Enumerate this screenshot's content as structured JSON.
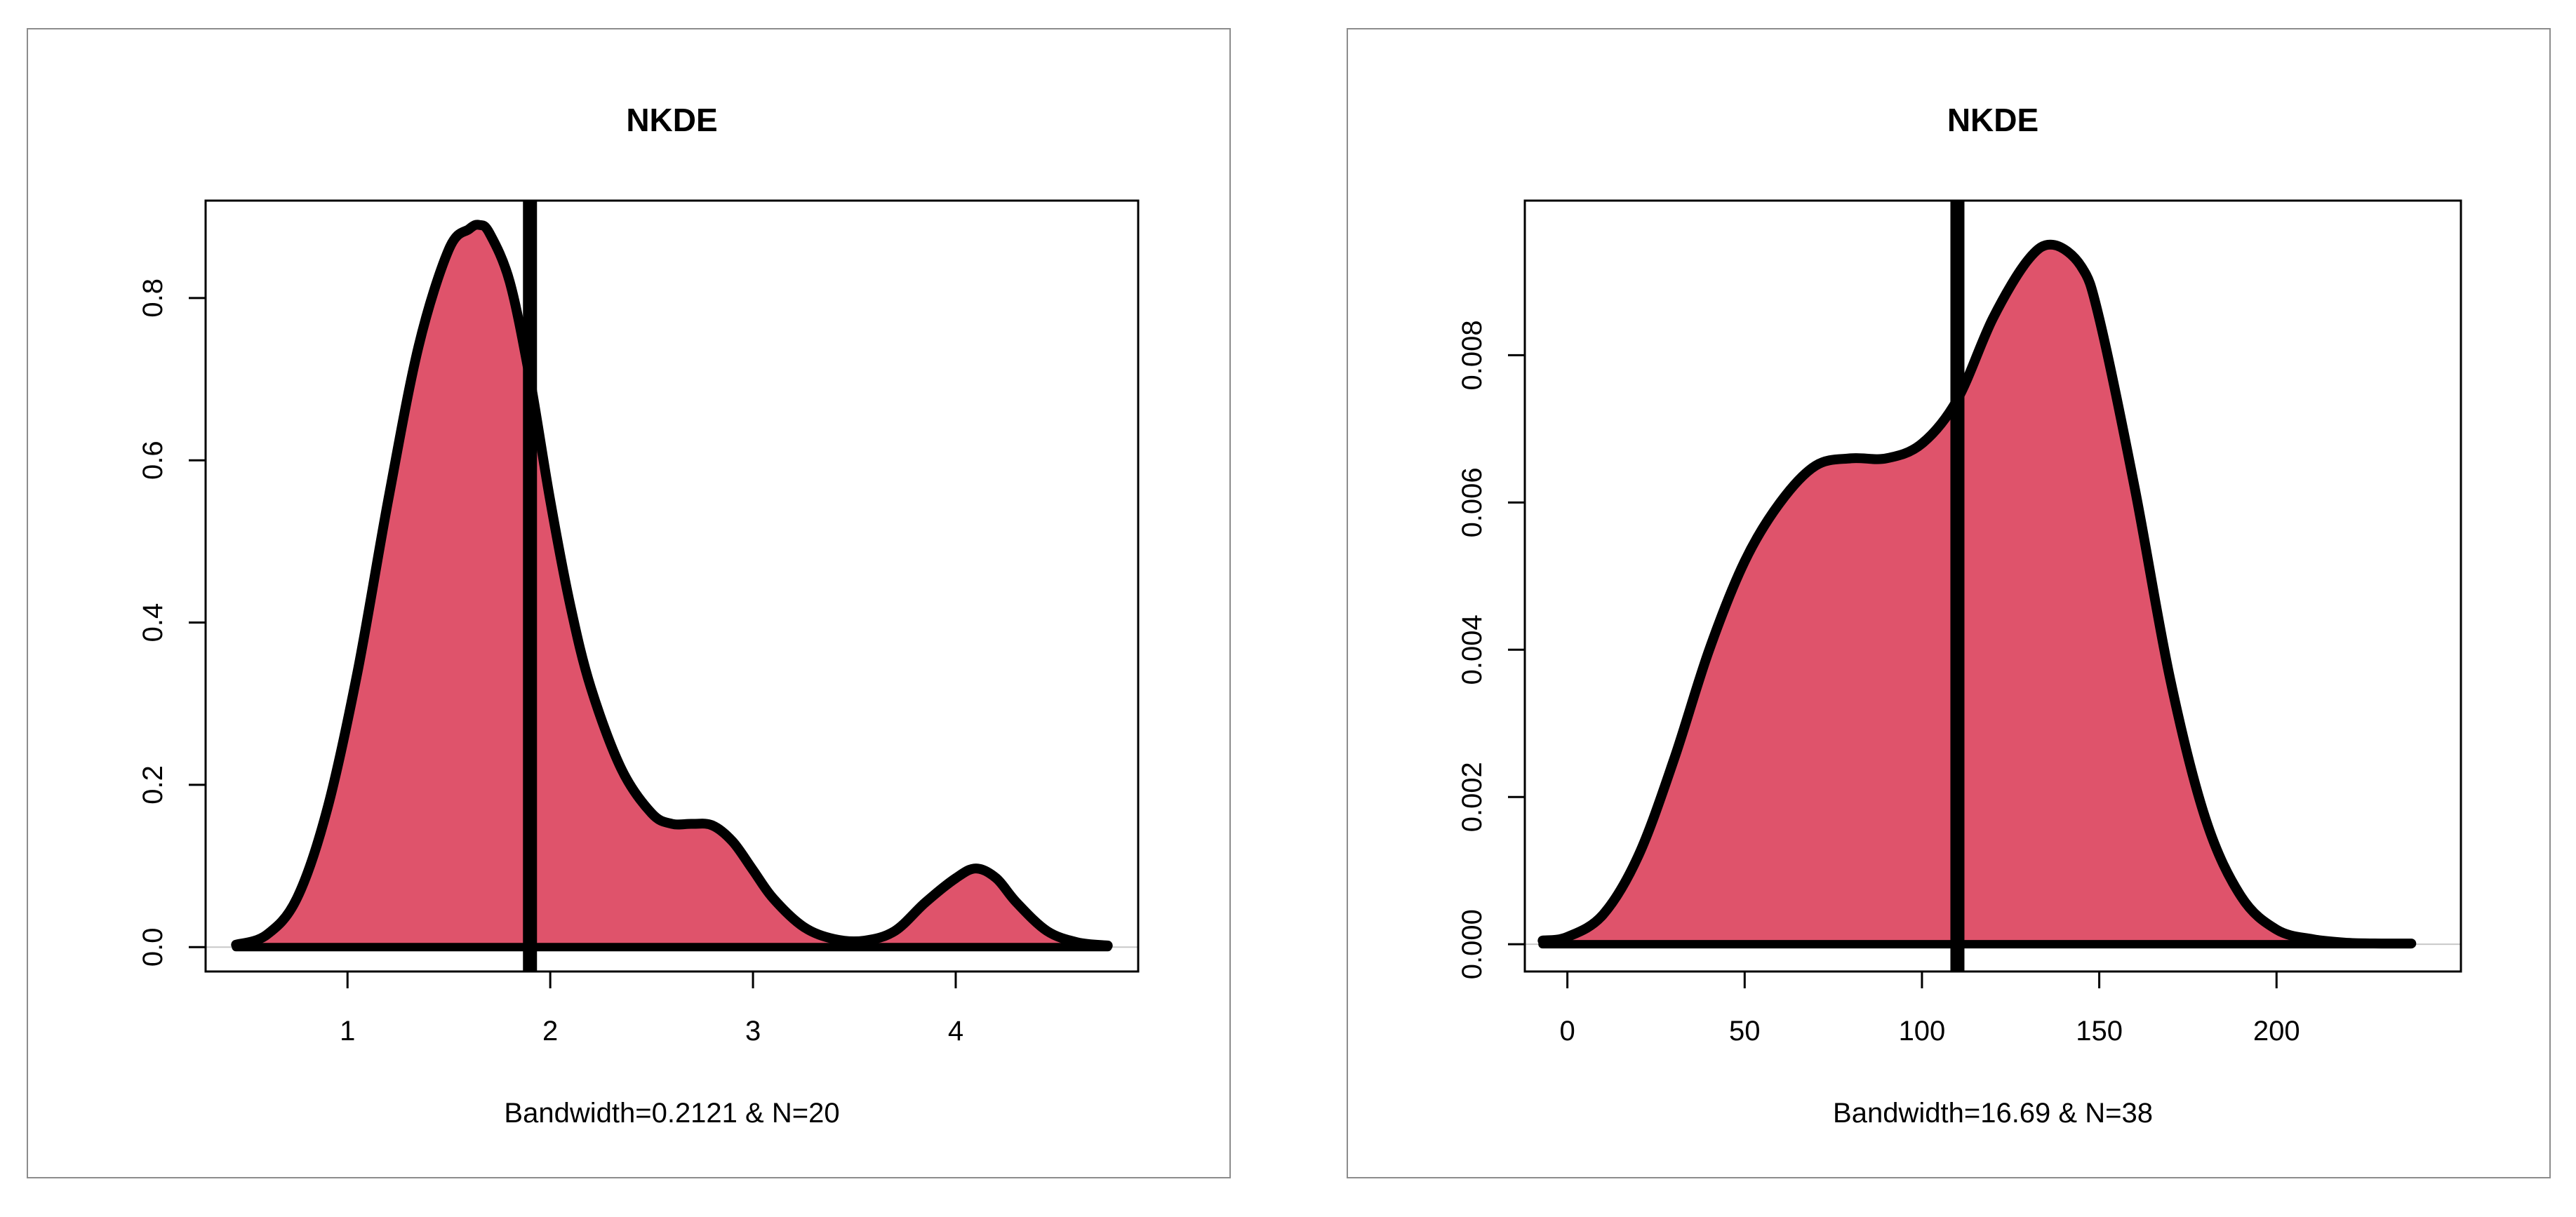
{
  "chart_data": [
    {
      "type": "area",
      "title": "NKDE",
      "xlabel": "Bandwidth=0.2121 & N=20",
      "ylabel": "",
      "xlim": [
        0.3,
        4.9
      ],
      "ylim": [
        -0.03,
        0.92
      ],
      "x_ticks": [
        1,
        2,
        3,
        4
      ],
      "x_tick_labels": [
        "1",
        "2",
        "3",
        "4"
      ],
      "y_ticks": [
        0,
        0.2,
        0.4,
        0.6,
        0.8
      ],
      "y_tick_labels": [
        "0.0",
        "0.2",
        "0.4",
        "0.6",
        "0.8"
      ],
      "vline": 1.9,
      "fill_color": "#DF536B",
      "series": [
        {
          "name": "density",
          "x": [
            0.45,
            0.6,
            0.75,
            0.9,
            1.05,
            1.2,
            1.35,
            1.5,
            1.6,
            1.65,
            1.7,
            1.8,
            1.9,
            2.0,
            2.1,
            2.2,
            2.35,
            2.5,
            2.6,
            2.7,
            2.8,
            2.9,
            3.0,
            3.1,
            3.25,
            3.4,
            3.55,
            3.7,
            3.85,
            4.0,
            4.1,
            4.2,
            4.3,
            4.45,
            4.6,
            4.75
          ],
          "y": [
            0.003,
            0.015,
            0.06,
            0.17,
            0.34,
            0.55,
            0.74,
            0.86,
            0.885,
            0.89,
            0.88,
            0.82,
            0.7,
            0.55,
            0.42,
            0.32,
            0.22,
            0.165,
            0.152,
            0.152,
            0.15,
            0.13,
            0.095,
            0.06,
            0.025,
            0.01,
            0.008,
            0.02,
            0.055,
            0.085,
            0.097,
            0.085,
            0.055,
            0.02,
            0.006,
            0.002
          ]
        }
      ]
    },
    {
      "type": "area",
      "title": "NKDE",
      "xlabel": "Bandwidth=16.69 & N=38",
      "ylabel": "",
      "xlim": [
        -12,
        252
      ],
      "ylim": [
        -0.00037,
        0.0101
      ],
      "x_ticks": [
        0,
        50,
        100,
        150,
        200
      ],
      "x_tick_labels": [
        "0",
        "50",
        "100",
        "150",
        "200"
      ],
      "y_ticks": [
        0,
        0.002,
        0.004,
        0.006,
        0.008
      ],
      "y_tick_labels": [
        "0.000",
        "0.002",
        "0.004",
        "0.006",
        "0.008"
      ],
      "vline": 110,
      "fill_color": "#DF536B",
      "series": [
        {
          "name": "density",
          "x": [
            -7,
            0,
            10,
            20,
            30,
            40,
            50,
            60,
            70,
            80,
            90,
            100,
            110,
            120,
            130,
            137,
            145,
            150,
            160,
            170,
            180,
            190,
            200,
            210,
            220,
            230,
            238
          ],
          "y": [
            5e-05,
            0.0001,
            0.0004,
            0.0012,
            0.0025,
            0.004,
            0.0052,
            0.006,
            0.0065,
            0.0066,
            0.0066,
            0.0068,
            0.0074,
            0.0085,
            0.0093,
            0.0095,
            0.0092,
            0.0085,
            0.0062,
            0.0036,
            0.0017,
            0.00065,
            0.0002,
            7e-05,
            2e-05,
            1e-05,
            1e-05
          ]
        }
      ]
    }
  ]
}
